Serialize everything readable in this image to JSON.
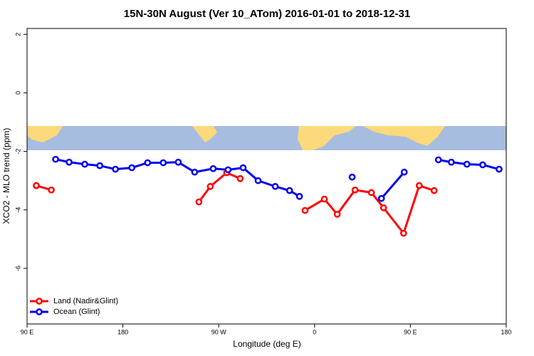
{
  "chart_data": {
    "type": "line",
    "title": "15N-30N August (Ver 10_ATom)   2016-01-01 to 2018-12-31",
    "x_label": "Longitude (deg E)",
    "y_label": "XCO2 - MLO trend (ppm)",
    "xlim": [
      90,
      540
    ],
    "ylim": [
      -7.9,
      2.2
    ],
    "xticks": [
      {
        "value": 90,
        "label": "90 E"
      },
      180,
      {
        "value": 270,
        "label": "90 W"
      },
      {
        "value": 360,
        "label": "0"
      },
      {
        "value": 450,
        "label": "90 E"
      },
      {
        "value": 540,
        "label": "180"
      }
    ],
    "yticks": [
      2,
      0,
      -2,
      -4,
      -6
    ],
    "legend": "bottomleft",
    "series": [
      {
        "name": "Land (Nadir&Glint)",
        "color": "#ff0000",
        "x": [
          98.7,
          112.8,
          null,
          251.4,
          262.1,
          277.5,
          290.2,
          null,
          351.1,
          369.2,
          381.3,
          398.0,
          413.4,
          424.8,
          443.6,
          458.3,
          472.3
        ],
        "values": [
          -3.17,
          -3.32,
          null,
          -3.73,
          -3.2,
          -2.73,
          -2.93,
          null,
          -4.02,
          -3.63,
          -4.15,
          -3.32,
          -3.41,
          -3.93,
          -4.8,
          -3.17,
          -3.34
        ]
      },
      {
        "name": "Ocean (Glint)",
        "color": "#0000ee",
        "x": [
          116.8,
          129.5,
          144.2,
          158.3,
          173.0,
          188.4,
          203.2,
          217.9,
          232.0,
          247.4,
          264.8,
          278.8,
          292.9,
          307.0,
          323.1,
          336.5,
          345.8,
          null,
          395.3,
          null,
          422.8,
          444.2,
          null,
          476.3,
          488.4,
          503.1,
          517.9,
          533.3
        ],
        "values": [
          -2.27,
          -2.37,
          -2.44,
          -2.49,
          -2.61,
          -2.56,
          -2.39,
          -2.39,
          -2.37,
          -2.71,
          -2.59,
          -2.63,
          -2.56,
          -3.0,
          -3.2,
          -3.34,
          -3.54,
          null,
          -2.88,
          null,
          -3.61,
          -2.71,
          null,
          -2.29,
          -2.37,
          -2.44,
          -2.46,
          -2.61
        ]
      }
    ]
  }
}
